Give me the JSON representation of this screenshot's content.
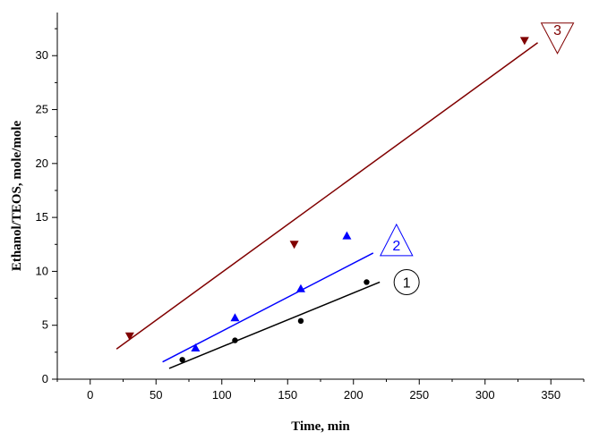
{
  "chart_data": {
    "type": "scatter",
    "xlabel": "Time,  min",
    "ylabel": "Ethanol/TEOS,  mole/mole",
    "xlim": [
      -25,
      375
    ],
    "ylim": [
      0,
      34
    ],
    "xticks": [
      0,
      50,
      100,
      150,
      200,
      250,
      300,
      350
    ],
    "yticks": [
      0,
      5,
      10,
      15,
      20,
      25,
      30
    ],
    "grid": false,
    "legend": "inline labels",
    "series": [
      {
        "label": "1",
        "marker": "circle",
        "label_shape": "circle",
        "color": "#000000",
        "line_color": "#000000",
        "points": [
          [
            70,
            1.8
          ],
          [
            110,
            3.6
          ],
          [
            160,
            5.4
          ],
          [
            210,
            9.0
          ]
        ],
        "fit_line": [
          [
            60,
            1.0
          ],
          [
            220,
            9.0
          ]
        ]
      },
      {
        "label": "2",
        "marker": "triangle-up",
        "label_shape": "triangle-up",
        "color": "#0000ff",
        "line_color": "#0000ff",
        "points": [
          [
            80,
            2.9
          ],
          [
            110,
            5.7
          ],
          [
            160,
            8.4
          ],
          [
            195,
            13.3
          ]
        ],
        "fit_line": [
          [
            55,
            1.6
          ],
          [
            215,
            11.7
          ]
        ]
      },
      {
        "label": "3",
        "marker": "triangle-down",
        "label_shape": "triangle-down",
        "color": "#800000",
        "line_color": "#800000",
        "points": [
          [
            30,
            4.0
          ],
          [
            155,
            12.5
          ],
          [
            330,
            31.4
          ]
        ],
        "fit_line": [
          [
            20,
            2.8
          ],
          [
            340,
            31.2
          ]
        ]
      }
    ]
  }
}
